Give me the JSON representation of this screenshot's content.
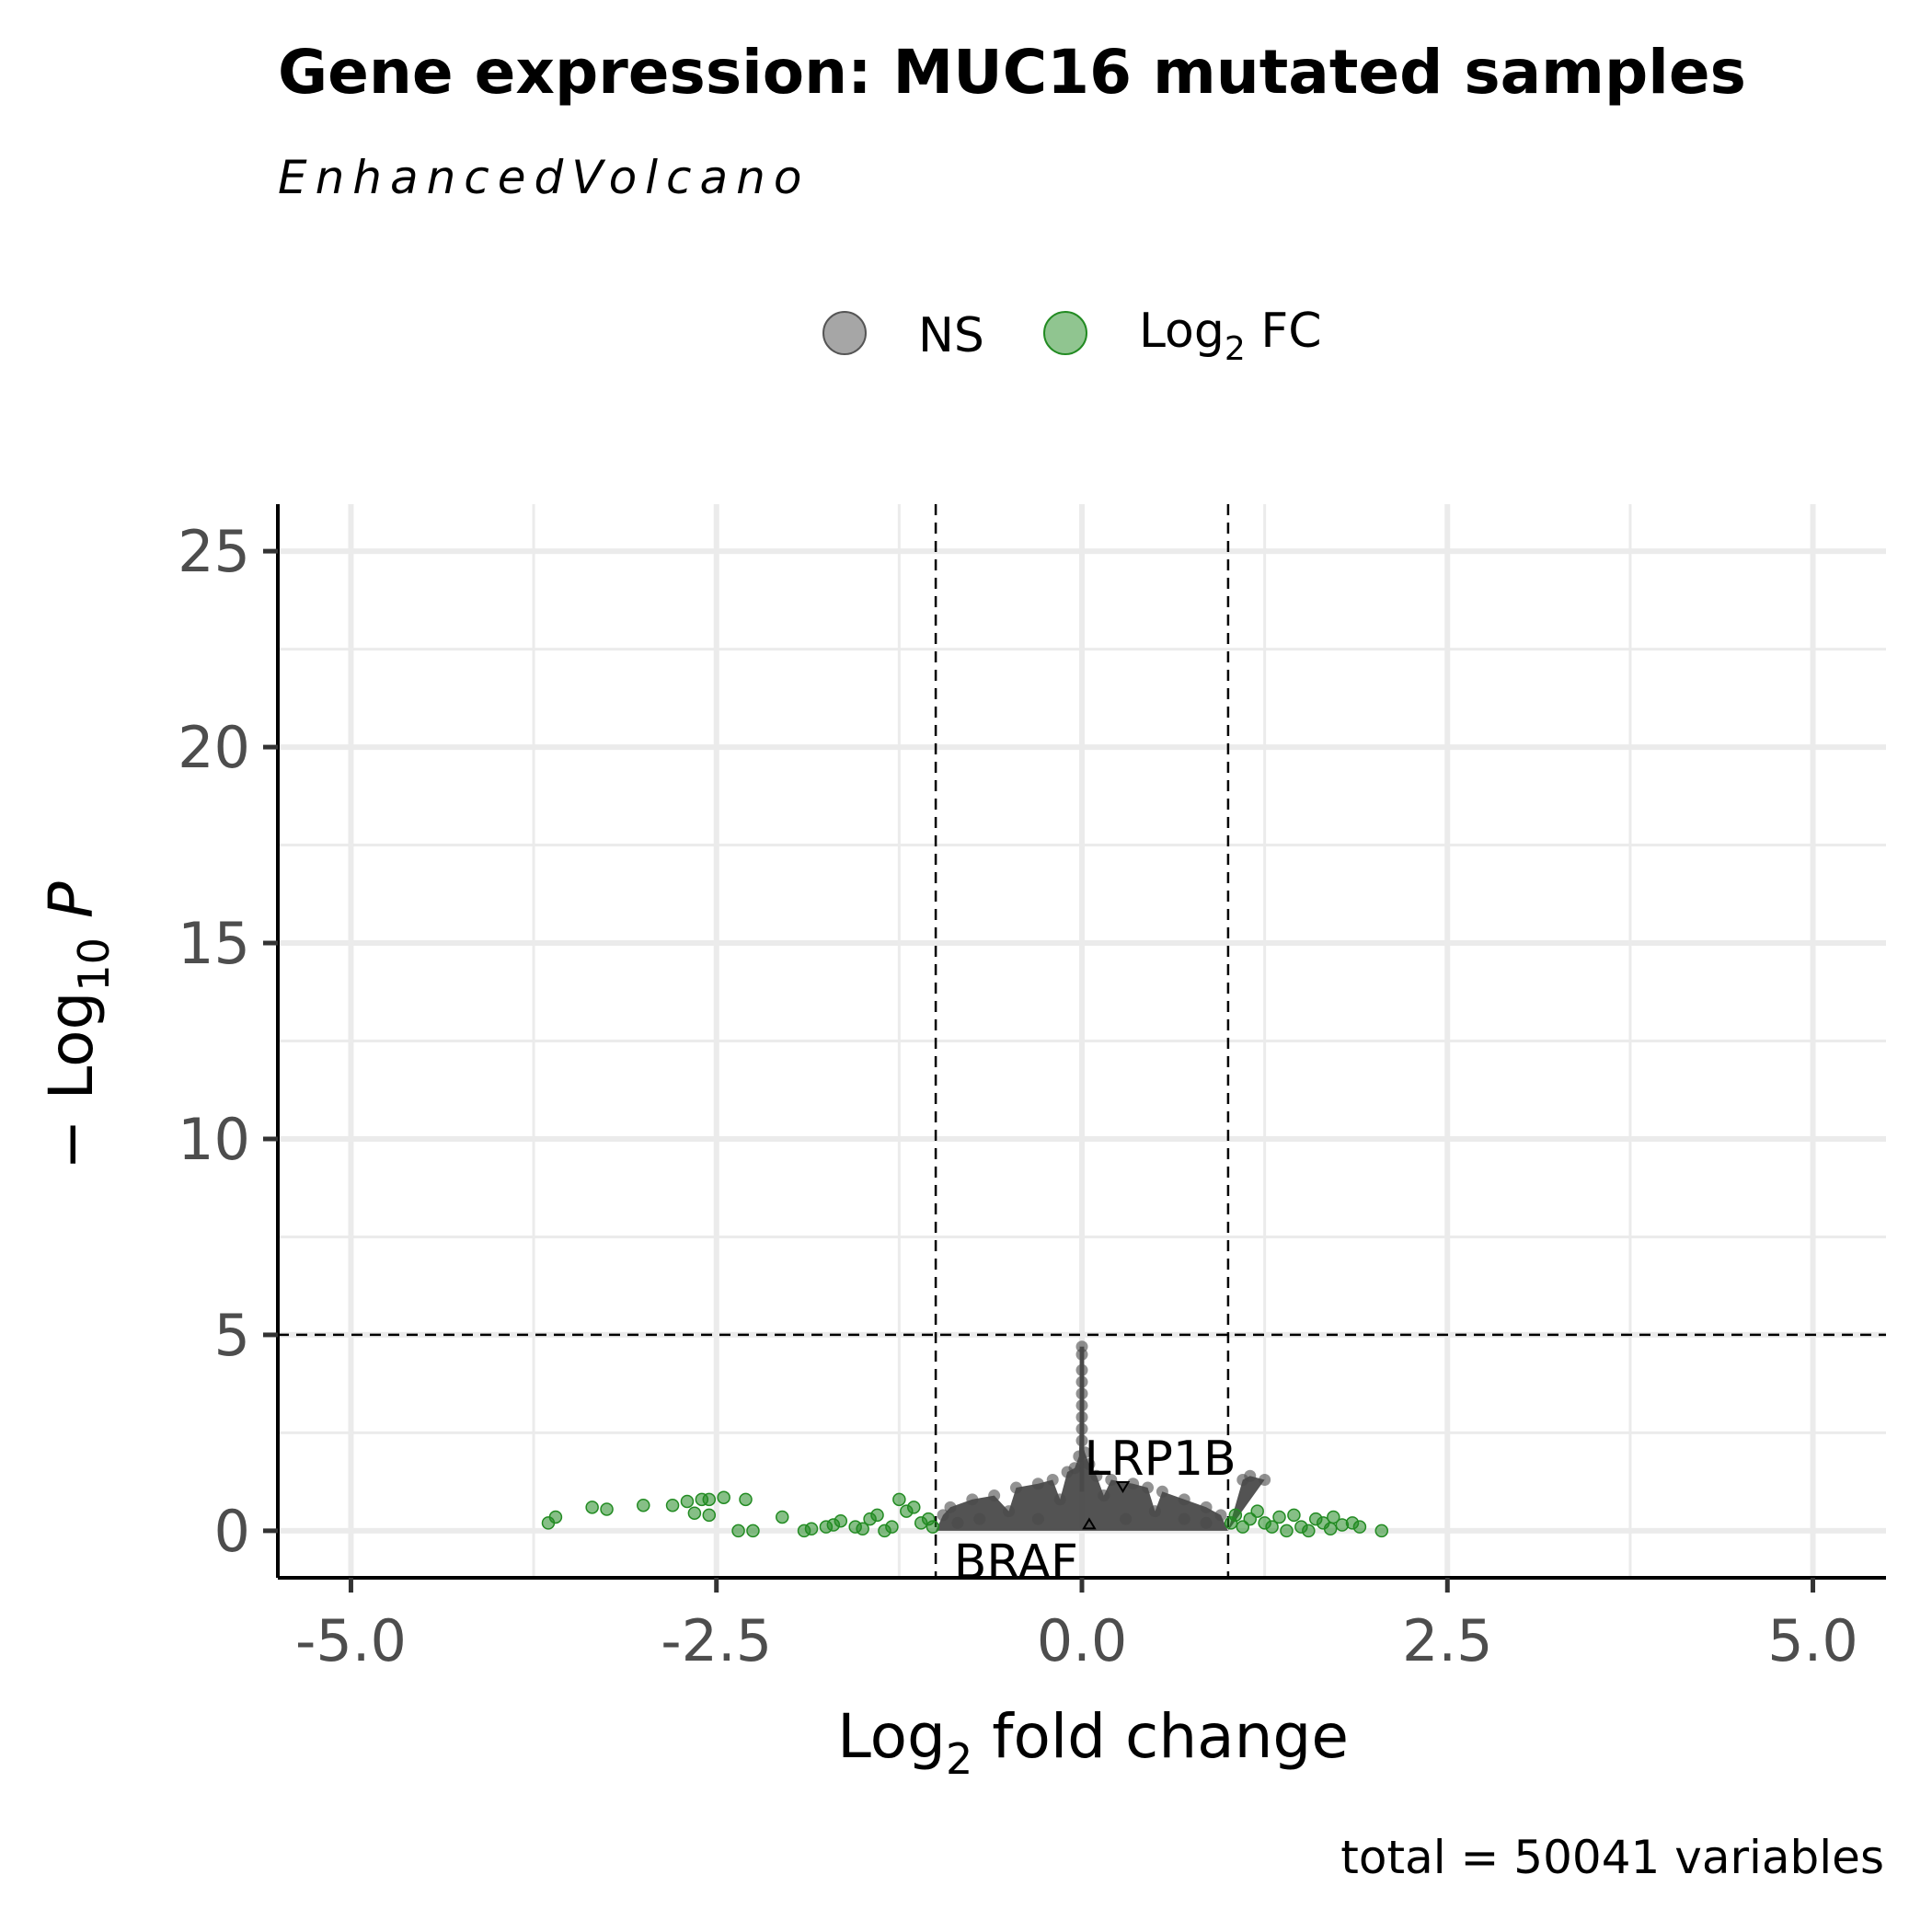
{
  "chart_data": {
    "type": "scatter",
    "title": "Gene expression: MUC16 mutated samples",
    "subtitle": "EnhancedVolcano",
    "xlabel_main": "Log",
    "xlabel_sub": "2",
    "xlabel_rest": " fold change",
    "ylabel_pre": "− Log",
    "ylabel_sub": "10",
    "ylabel_italic": "P",
    "caption": "total = 50041 variables",
    "xlim": [
      -5.5,
      5.5
    ],
    "ylim": [
      -1.2,
      26.2
    ],
    "x_ticks": [
      -5.0,
      -2.5,
      0.0,
      2.5,
      5.0
    ],
    "x_tick_labels": [
      "-5.0",
      "-2.5",
      "0.0",
      "2.5",
      "5.0"
    ],
    "y_ticks": [
      0,
      5,
      10,
      15,
      20,
      25
    ],
    "y_tick_labels": [
      "0",
      "5",
      "10",
      "15",
      "20",
      "25"
    ],
    "fc_cutoff": 1.0,
    "p_cutoff": 5,
    "grid": true,
    "legend": {
      "position": "top",
      "entries": [
        {
          "label": "NS",
          "sub": "",
          "color": "#808080"
        },
        {
          "label": "Log",
          "sub": "2",
          "rest": " FC",
          "color": "#228B22"
        }
      ]
    },
    "colors": {
      "ns": "#4a4a4a",
      "fc": "#228B22"
    },
    "series": [
      {
        "name": "NS",
        "color": "#4a4a4a",
        "points": [
          [
            0.0,
            4.7
          ],
          [
            0.0,
            4.5
          ],
          [
            0.0,
            4.1
          ],
          [
            0.0,
            3.8
          ],
          [
            0.0,
            3.5
          ],
          [
            0.0,
            3.2
          ],
          [
            0.0,
            2.9
          ],
          [
            0.0,
            2.6
          ],
          [
            0.0,
            2.3
          ],
          [
            0.02,
            2.0
          ],
          [
            -0.02,
            1.9
          ],
          [
            0.05,
            1.7
          ],
          [
            -0.05,
            1.6
          ],
          [
            -0.1,
            1.5
          ],
          [
            0.1,
            1.4
          ],
          [
            -0.2,
            1.3
          ],
          [
            0.2,
            1.3
          ],
          [
            -0.3,
            1.2
          ],
          [
            0.35,
            1.2
          ],
          [
            -0.45,
            1.1
          ],
          [
            0.45,
            1.1
          ],
          [
            -0.6,
            0.9
          ],
          [
            0.55,
            1.0
          ],
          [
            -0.75,
            0.8
          ],
          [
            0.7,
            0.8
          ],
          [
            -0.9,
            0.6
          ],
          [
            0.85,
            0.6
          ],
          [
            -0.95,
            0.4
          ],
          [
            0.95,
            0.4
          ],
          [
            1.15,
            1.4
          ],
          [
            1.25,
            1.3
          ],
          [
            1.1,
            1.3
          ],
          [
            -0.5,
            0.5
          ],
          [
            0.5,
            0.5
          ],
          [
            -0.3,
            0.3
          ],
          [
            0.3,
            0.3
          ],
          [
            -0.7,
            0.3
          ],
          [
            0.7,
            0.3
          ],
          [
            -0.15,
            0.8
          ],
          [
            0.15,
            0.9
          ],
          [
            -0.85,
            0.2
          ],
          [
            0.85,
            0.2
          ]
        ]
      },
      {
        "name": "Log2 FC",
        "color": "#228B22",
        "points": [
          [
            -3.65,
            0.2
          ],
          [
            -3.6,
            0.35
          ],
          [
            -3.35,
            0.6
          ],
          [
            -3.25,
            0.55
          ],
          [
            -3.0,
            0.65
          ],
          [
            -2.8,
            0.65
          ],
          [
            -2.7,
            0.75
          ],
          [
            -2.65,
            0.45
          ],
          [
            -2.6,
            0.8
          ],
          [
            -2.55,
            0.8
          ],
          [
            -2.45,
            0.85
          ],
          [
            -2.55,
            0.4
          ],
          [
            -2.35,
            0.0
          ],
          [
            -2.3,
            0.8
          ],
          [
            -2.25,
            0.0
          ],
          [
            -2.05,
            0.35
          ],
          [
            -1.9,
            0.0
          ],
          [
            -1.85,
            0.05
          ],
          [
            -1.75,
            0.1
          ],
          [
            -1.7,
            0.15
          ],
          [
            -1.65,
            0.25
          ],
          [
            -1.55,
            0.1
          ],
          [
            -1.5,
            0.05
          ],
          [
            -1.45,
            0.3
          ],
          [
            -1.4,
            0.4
          ],
          [
            -1.35,
            0.0
          ],
          [
            -1.3,
            0.1
          ],
          [
            -1.25,
            0.8
          ],
          [
            -1.2,
            0.5
          ],
          [
            -1.15,
            0.6
          ],
          [
            -1.1,
            0.2
          ],
          [
            -1.05,
            0.3
          ],
          [
            -1.02,
            0.1
          ],
          [
            1.02,
            0.2
          ],
          [
            1.05,
            0.4
          ],
          [
            1.1,
            0.1
          ],
          [
            1.15,
            0.3
          ],
          [
            1.2,
            0.5
          ],
          [
            1.25,
            0.2
          ],
          [
            1.3,
            0.1
          ],
          [
            1.35,
            0.35
          ],
          [
            1.4,
            0.0
          ],
          [
            1.45,
            0.4
          ],
          [
            1.5,
            0.1
          ],
          [
            1.55,
            0.0
          ],
          [
            1.6,
            0.3
          ],
          [
            1.65,
            0.2
          ],
          [
            1.7,
            0.05
          ],
          [
            1.72,
            0.35
          ],
          [
            1.78,
            0.15
          ],
          [
            1.85,
            0.2
          ],
          [
            1.9,
            0.1
          ],
          [
            2.05,
            0.0
          ]
        ]
      }
    ],
    "labels": [
      {
        "text": "LRP1B",
        "x": 0.28,
        "y": 1.1
      },
      {
        "text": "BRAF",
        "x": 0.05,
        "y": 0.2
      }
    ]
  }
}
